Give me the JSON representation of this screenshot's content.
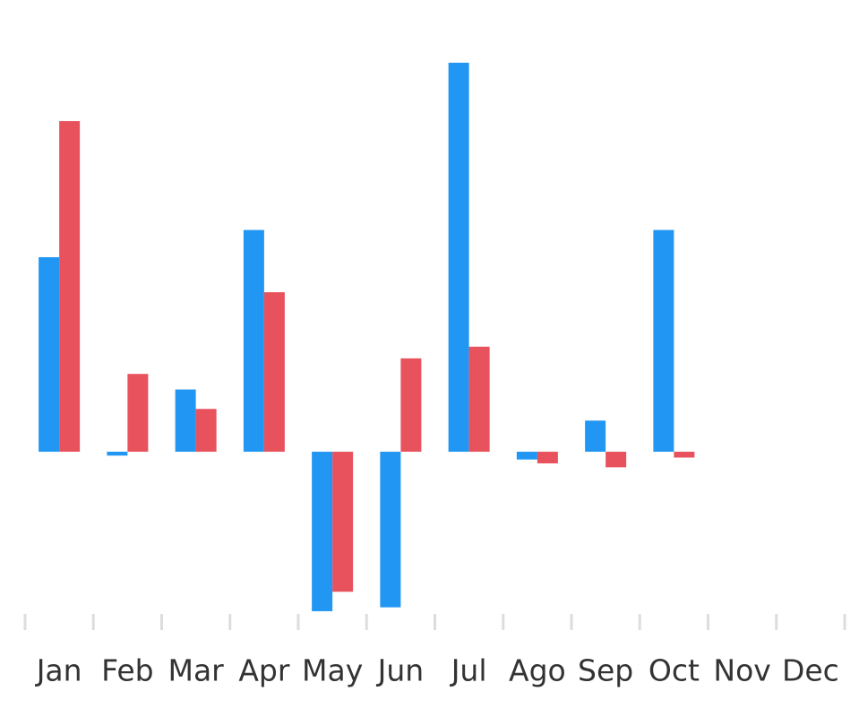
{
  "chart_data": {
    "type": "bar",
    "categories": [
      "Jan",
      "Feb",
      "Mar",
      "Apr",
      "May",
      "Jun",
      "Jul",
      "Ago",
      "Sep",
      "Oct",
      "Nov",
      "Dec"
    ],
    "series": [
      {
        "color": "#2196f3",
        "values": [
          50,
          -1,
          16,
          57,
          -41,
          -40,
          100,
          -2,
          8,
          57,
          null,
          null
        ]
      },
      {
        "color": "#e8525d",
        "values": [
          85,
          20,
          11,
          41,
          -36,
          24,
          27,
          -3,
          -4,
          -1.5,
          null,
          null
        ]
      }
    ],
    "ylim": [
      -42,
      102
    ]
  }
}
